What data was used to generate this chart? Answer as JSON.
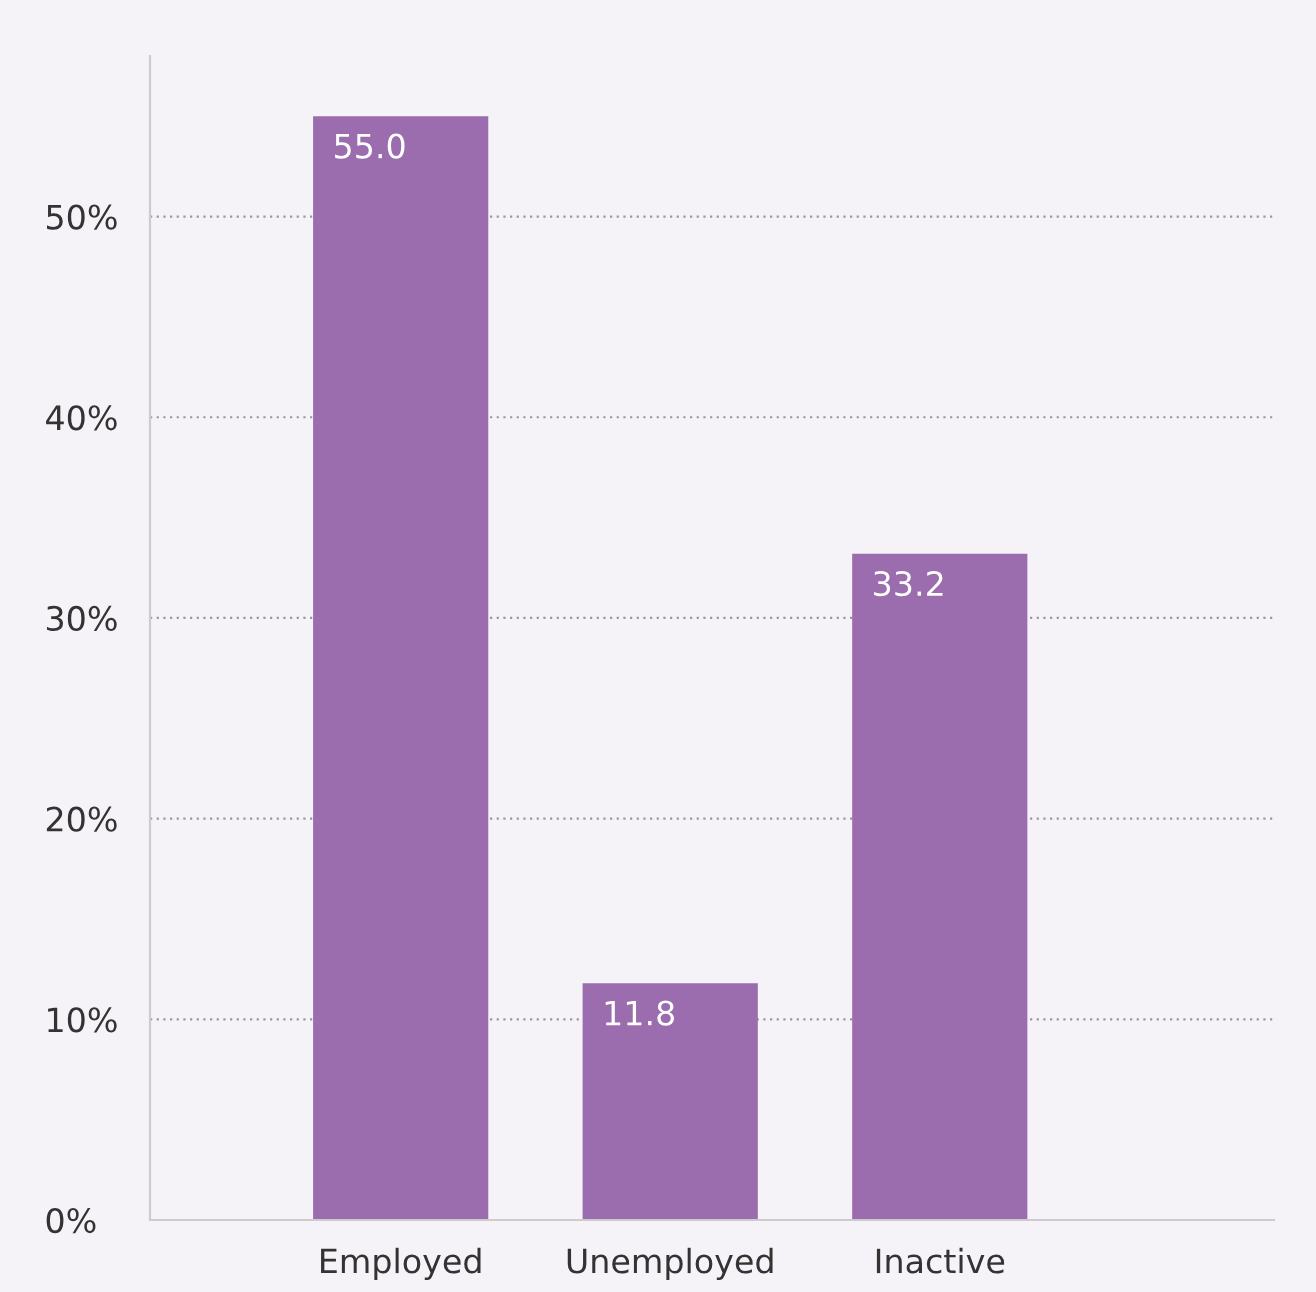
{
  "chart_data": {
    "type": "bar",
    "categories": [
      "Employed",
      "Unemployed",
      "Inactive"
    ],
    "values": [
      55.0,
      11.8,
      33.2
    ],
    "color": "#9b6cae",
    "ylim": [
      0,
      58
    ],
    "yticks": [
      {
        "value": 0,
        "label": "0%"
      },
      {
        "value": 10,
        "label": "10%"
      },
      {
        "value": 20,
        "label": "20%"
      },
      {
        "value": 30,
        "label": "30%"
      },
      {
        "value": 40,
        "label": "40%"
      },
      {
        "value": 50,
        "label": "50%"
      }
    ],
    "grid": "y",
    "value_labels": [
      "55.0",
      "11.8",
      "33.2"
    ]
  }
}
